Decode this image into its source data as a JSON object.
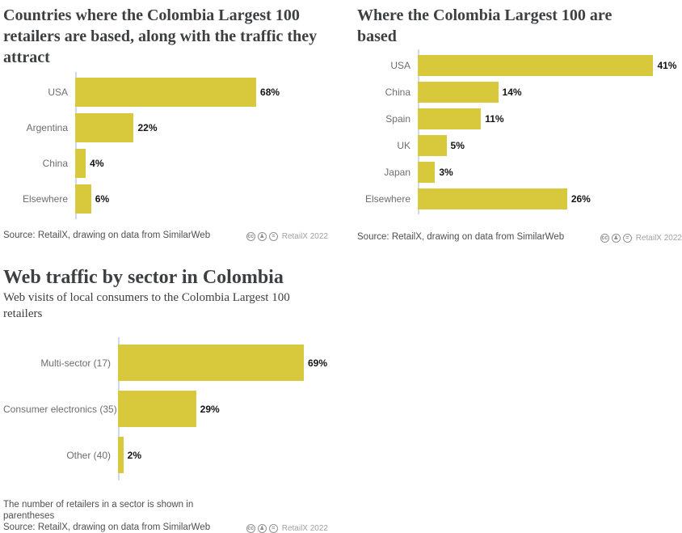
{
  "brand": {
    "bar_color": "#d8c93c",
    "axis_color": "#cdd9ec",
    "title_color": "#3d4043"
  },
  "chart_data": [
    {
      "type": "bar",
      "orientation": "horizontal",
      "title": "Countries where the Colombia Largest 100 retailers are based, along with the traffic they attract",
      "categories": [
        "USA",
        "Argentina",
        "China",
        "Elsewhere"
      ],
      "values": [
        68,
        22,
        4,
        6
      ],
      "value_suffix": "%",
      "xlim": [
        0,
        95
      ],
      "grid": false,
      "legend": "none",
      "source": "Source: RetailX, drawing on data from SimilarWeb",
      "license": "RetailX 2022"
    },
    {
      "type": "bar",
      "orientation": "horizontal",
      "title": "Where the Colombia Largest 100 are based",
      "categories": [
        "USA",
        "China",
        "Spain",
        "UK",
        "Japan",
        "Elsewhere"
      ],
      "values": [
        41,
        14,
        11,
        5,
        3,
        26
      ],
      "value_suffix": "%",
      "xlim": [
        0,
        46
      ],
      "grid": false,
      "legend": "none",
      "source": "Source: RetailX, drawing on data from SimilarWeb",
      "license": "RetailX 2022"
    },
    {
      "type": "bar",
      "orientation": "horizontal",
      "title": "Web traffic by sector in Colombia",
      "subtitle": "Web visits of local consumers to the Colombia Largest 100 retailers",
      "categories": [
        "Multi-sector (17)",
        "Consumer electronics (35)",
        "Other (40)"
      ],
      "values": [
        69,
        29,
        2
      ],
      "value_suffix": "%",
      "xlim": [
        0,
        78
      ],
      "grid": false,
      "legend": "none",
      "footnote": "The number of retailers in a sector is shown in parentheses",
      "source": "Source: RetailX, drawing on data from SimilarWeb",
      "license": "RetailX 2022"
    }
  ]
}
